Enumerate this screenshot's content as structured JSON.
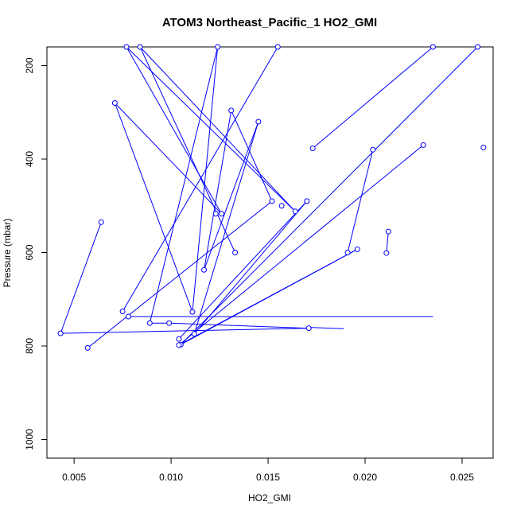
{
  "chart_data": {
    "type": "line",
    "title": "ATOM3 Northeast_Pacific_1 HO2_GMI",
    "xlabel": "HO2_GMI",
    "ylabel": "Pressure (mbar)",
    "xlim": [
      0.0036,
      0.0266
    ],
    "ylim": [
      1040,
      160
    ],
    "y_reversed": true,
    "xticks": [
      0.005,
      0.01,
      0.015,
      0.02,
      0.025
    ],
    "xtick_labels": [
      "0.005",
      "0.010",
      "0.015",
      "0.020",
      "0.025"
    ],
    "yticks": [
      200,
      400,
      600,
      800,
      1000
    ],
    "ytick_labels": [
      "200",
      "400",
      "600",
      "800",
      "1000"
    ],
    "grid": false,
    "series_color": "#0000ff",
    "series": [
      {
        "marker": "open-circle",
        "x": [
          0.0064,
          0.0043,
          0.0171,
          0.0099,
          0.0089,
          0.0124,
          0.0111,
          0.0071,
          0.0126,
          0.0077,
          0.0164,
          0.0084,
          0.0133,
          0.0075,
          0.0155,
          0.0057,
          0.0152,
          0.0131,
          0.0117,
          0.0145,
          0.0112,
          0.017,
          0.0104,
          0.0204,
          0.0191,
          0.0258,
          0.0105,
          0.0196,
          0.0104,
          0.023,
          0.0173,
          0.0235,
          0.0261
        ],
        "y": [
          535,
          773,
          762,
          751,
          751,
          160,
          727,
          280,
          517,
          160,
          512,
          160,
          600,
          726,
          160,
          804,
          490,
          296,
          637,
          320,
          774,
          490,
          785,
          380,
          600,
          160,
          797,
          593,
          798,
          370,
          377,
          160,
          375
        ],
        "pen_up_after": [
          12,
          14,
          22,
          24,
          29,
          31
        ]
      },
      {
        "marker": "none",
        "x": [
          0.0232,
          0.0212,
          0.0211,
          0.017,
          0.0189
        ],
        "y": [
          160,
          555,
          601,
          760,
          763
        ],
        "pen_up_after": [
          0,
          2
        ]
      },
      {
        "marker": "none",
        "x": [
          0.0118,
          0.0225,
          0.0078,
          0.0235
        ],
        "y": [
          160,
          160,
          737,
          737
        ],
        "pen_up_after": [
          0,
          1
        ]
      }
    ],
    "marked_points_extra": [
      {
        "x": 0.0212,
        "y": 555
      },
      {
        "x": 0.0211,
        "y": 601
      },
      {
        "x": 0.0078,
        "y": 737
      },
      {
        "x": 0.0123,
        "y": 517
      },
      {
        "x": 0.0157,
        "y": 500
      }
    ]
  }
}
